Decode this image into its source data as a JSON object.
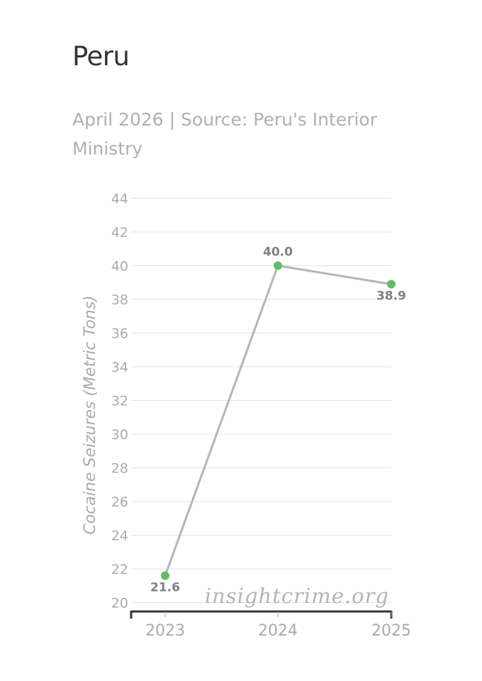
{
  "header": {
    "title": "Peru",
    "subtitle": "April 2026 | Source: Peru's Interior Ministry"
  },
  "watermark": "insightcrime.org",
  "colors": {
    "line": "#b5b5b5",
    "point": "#66bb6a",
    "grid": "#e3e3e3",
    "axis": "#333333"
  },
  "chart_data": {
    "type": "line",
    "categories": [
      "2023",
      "2024",
      "2025"
    ],
    "series": [
      {
        "values": [
          21.6,
          40.0,
          38.9
        ],
        "labels": [
          "21.6",
          "40.0",
          "38.9"
        ]
      }
    ],
    "ylabel": "Cocaine Seizures (Metric Tons)",
    "xlabel": "",
    "ylim": [
      20,
      44
    ],
    "yticks": [
      20,
      22,
      24,
      26,
      28,
      30,
      32,
      34,
      36,
      38,
      40,
      42,
      44
    ],
    "grid": true,
    "legend": "none"
  }
}
